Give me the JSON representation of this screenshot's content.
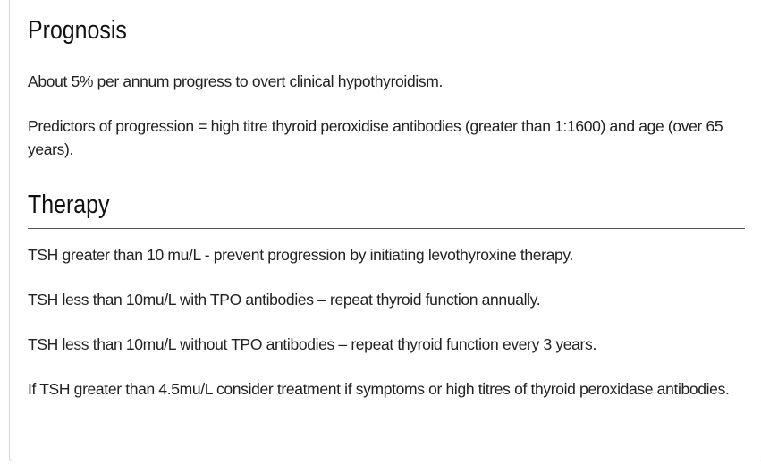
{
  "prognosis": {
    "title": "Prognosis",
    "paragraphs": [
      "About 5% per annum progress to overt clinical hypothyroidism.",
      "Predictors of progression = high titre thyroid peroxidise antibodies (greater than 1:1600) and age (over 65 years)."
    ]
  },
  "therapy": {
    "title": "Therapy",
    "paragraphs": [
      "TSH greater than 10 mu/L - prevent progression by initiating levothyroxine therapy.",
      "TSH less than 10mu/L with TPO antibodies – repeat thyroid function annually.",
      "TSH less than 10mu/L without TPO antibodies – repeat thyroid function every 3 years.",
      "If TSH greater than 4.5mu/L consider treatment if symptoms or high titres of thyroid peroxidase antibodies."
    ]
  }
}
